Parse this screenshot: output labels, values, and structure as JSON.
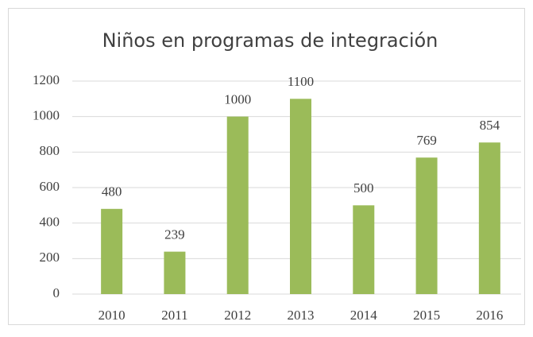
{
  "chart_data": {
    "type": "bar",
    "title": "Niños en programas de integración",
    "categories": [
      "2010",
      "2011",
      "2012",
      "2013",
      "2014",
      "2015",
      "2016"
    ],
    "values": [
      480,
      239,
      1000,
      1100,
      500,
      769,
      854
    ],
    "color": "#9bbb59",
    "ylim": [
      0,
      1200
    ],
    "yticks": [
      0,
      200,
      400,
      600,
      800,
      1000,
      1200
    ],
    "grid": true
  }
}
